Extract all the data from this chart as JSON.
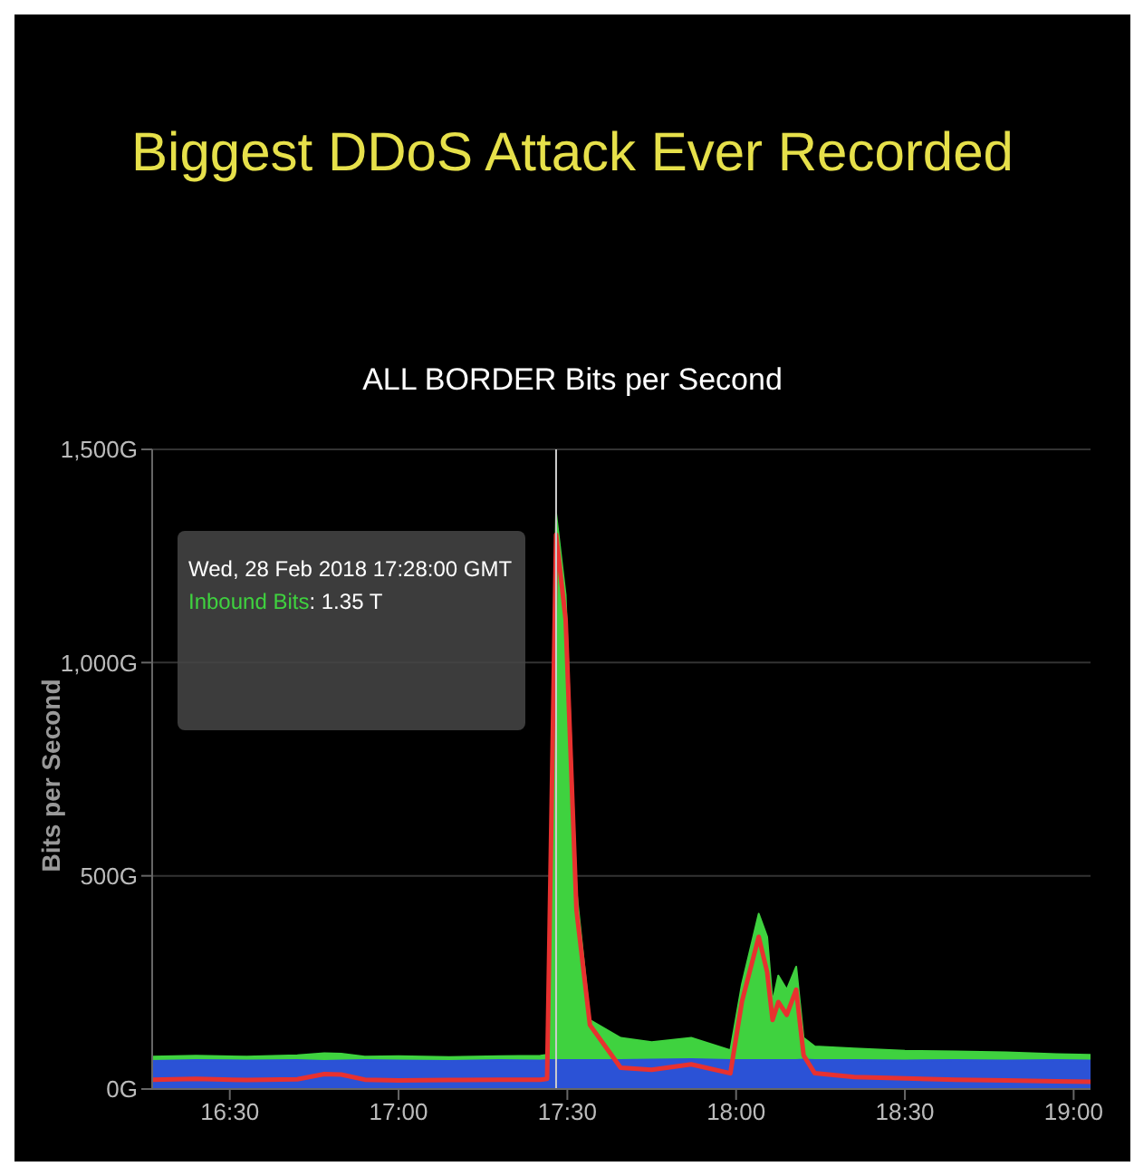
{
  "chart_data": {
    "type": "area",
    "title": "Biggest DDoS Attack Ever Recorded",
    "subtitle": "ALL BORDER Bits per Second",
    "ylabel": "Bits per Second",
    "x": [
      16.27,
      16.4,
      16.55,
      16.7,
      16.78,
      16.83,
      16.9,
      17.0,
      17.15,
      17.3,
      17.42,
      17.44,
      17.4667,
      17.495,
      17.527,
      17.567,
      17.658,
      17.75,
      17.867,
      17.983,
      18.017,
      18.067,
      18.092,
      18.108,
      18.125,
      18.15,
      18.178,
      18.2,
      18.233,
      18.35,
      18.5,
      18.65,
      18.8,
      18.95,
      19.05
    ],
    "series": [
      {
        "color": "#3fd23f",
        "values": [
          76,
          78,
          76,
          79,
          84,
          83,
          76,
          77,
          75,
          77,
          78,
          80,
          1350,
          1159,
          465,
          162,
          120,
          110,
          120,
          91,
          245,
          411,
          357,
          204,
          266,
          233,
          287,
          120,
          100,
          95,
          90,
          88,
          86,
          82,
          80
        ]
      },
      {
        "color": "#2b52d6",
        "values": [
          66,
          68,
          67,
          68,
          66,
          67,
          68,
          67,
          66,
          68,
          67,
          68,
          68,
          68,
          68,
          68,
          68,
          69,
          70,
          68,
          68,
          68,
          68,
          68,
          68,
          68,
          68,
          69,
          68,
          68,
          67,
          68,
          67,
          68,
          67
        ]
      },
      {
        "type": "line",
        "color": "#e8312f",
        "values": [
          22,
          24,
          21,
          23,
          35,
          34,
          22,
          20,
          21,
          22,
          22,
          24,
          1300,
          1100,
          420,
          150,
          50,
          45,
          58,
          37,
          204,
          357,
          274,
          162,
          204,
          174,
          233,
          79,
          37,
          28,
          25,
          22,
          20,
          18,
          17
        ]
      }
    ],
    "xlim": [
      16.27,
      19.05
    ],
    "xticks": [
      {
        "value": 16.5,
        "label": "16:30"
      },
      {
        "value": 17,
        "label": "17:00"
      },
      {
        "value": 17.5,
        "label": "17:30"
      },
      {
        "value": 18,
        "label": "18:00"
      },
      {
        "value": 18.5,
        "label": "18:30"
      },
      {
        "value": 19,
        "label": "19:00"
      }
    ],
    "ylim": [
      0,
      1500
    ],
    "yticks": [
      {
        "value": 0,
        "label": "0G"
      },
      {
        "value": 500,
        "label": "500G"
      },
      {
        "value": 1000,
        "label": "1,000G"
      },
      {
        "value": 1500,
        "label": "1,500G"
      }
    ],
    "grid": "y",
    "ref_lines": [
      {
        "axis": "x",
        "value": 17.4667,
        "color": "#cccccc"
      }
    ],
    "annotations": [
      "Wed, 28 Feb 2018 17:28:00 GMT",
      "Inbound Bits: 1.35 T"
    ]
  }
}
